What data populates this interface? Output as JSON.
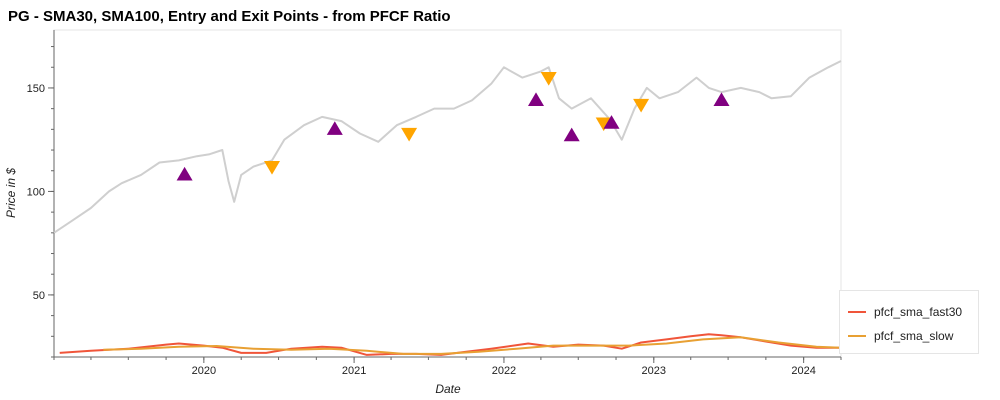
{
  "chart_data": {
    "type": "line",
    "title": "PG - SMA30, SMA100, Entry and Exit Points - from PFCF Ratio",
    "xlabel": "Date",
    "ylabel": "Price in $",
    "xlim": [
      "2019-01-01",
      "2024-04-01"
    ],
    "ylim": [
      20,
      178
    ],
    "x_ticks": [
      "2020",
      "2021",
      "2022",
      "2023",
      "2024"
    ],
    "y_ticks": [
      50,
      100,
      150
    ],
    "legend_position": "bottom-right, outside plot",
    "series": [
      {
        "name": "",
        "role": "price",
        "color": "#cfcfcf",
        "points": [
          [
            "2019-01-01",
            80
          ],
          [
            "2019-02-15",
            86
          ],
          [
            "2019-04-01",
            92
          ],
          [
            "2019-05-15",
            100
          ],
          [
            "2019-06-15",
            104
          ],
          [
            "2019-08-01",
            108
          ],
          [
            "2019-09-15",
            114
          ],
          [
            "2019-11-01",
            115
          ],
          [
            "2019-12-15",
            117
          ],
          [
            "2020-01-15",
            118
          ],
          [
            "2020-02-15",
            120
          ],
          [
            "2020-03-01",
            105
          ],
          [
            "2020-03-15",
            95
          ],
          [
            "2020-04-01",
            108
          ],
          [
            "2020-05-01",
            112
          ],
          [
            "2020-06-15",
            115
          ],
          [
            "2020-07-15",
            125
          ],
          [
            "2020-09-01",
            132
          ],
          [
            "2020-10-15",
            136
          ],
          [
            "2020-12-01",
            134
          ],
          [
            "2021-01-15",
            128
          ],
          [
            "2021-03-01",
            124
          ],
          [
            "2021-04-15",
            132
          ],
          [
            "2021-06-01",
            136
          ],
          [
            "2021-07-15",
            140
          ],
          [
            "2021-09-01",
            140
          ],
          [
            "2021-10-15",
            144
          ],
          [
            "2021-12-01",
            152
          ],
          [
            "2022-01-01",
            160
          ],
          [
            "2022-02-15",
            155
          ],
          [
            "2022-04-01",
            158
          ],
          [
            "2022-04-20",
            160
          ],
          [
            "2022-05-15",
            145
          ],
          [
            "2022-06-15",
            140
          ],
          [
            "2022-08-01",
            145
          ],
          [
            "2022-09-15",
            135
          ],
          [
            "2022-10-15",
            125
          ],
          [
            "2022-11-15",
            140
          ],
          [
            "2022-12-15",
            150
          ],
          [
            "2023-01-15",
            145
          ],
          [
            "2023-03-01",
            148
          ],
          [
            "2023-04-15",
            155
          ],
          [
            "2023-05-15",
            150
          ],
          [
            "2023-06-15",
            148
          ],
          [
            "2023-08-01",
            150
          ],
          [
            "2023-09-15",
            148
          ],
          [
            "2023-10-15",
            145
          ],
          [
            "2023-12-01",
            146
          ],
          [
            "2024-01-15",
            155
          ],
          [
            "2024-03-01",
            160
          ],
          [
            "2024-04-01",
            163
          ]
        ]
      },
      {
        "name": "pfcf_sma_fast30",
        "color": "#f0553a",
        "points": [
          [
            "2019-01-15",
            22
          ],
          [
            "2019-04-01",
            23
          ],
          [
            "2019-07-01",
            24
          ],
          [
            "2019-10-01",
            26
          ],
          [
            "2019-11-01",
            26.5
          ],
          [
            "2020-01-01",
            25.5
          ],
          [
            "2020-02-15",
            24.5
          ],
          [
            "2020-04-01",
            22
          ],
          [
            "2020-06-01",
            22
          ],
          [
            "2020-08-01",
            24
          ],
          [
            "2020-10-15",
            25
          ],
          [
            "2020-12-01",
            24.5
          ],
          [
            "2021-02-01",
            21
          ],
          [
            "2021-04-01",
            21.5
          ],
          [
            "2021-06-01",
            21.5
          ],
          [
            "2021-08-01",
            21
          ],
          [
            "2021-10-01",
            22.5
          ],
          [
            "2021-12-01",
            24
          ],
          [
            "2022-03-01",
            26.5
          ],
          [
            "2022-05-01",
            25
          ],
          [
            "2022-07-01",
            26
          ],
          [
            "2022-09-01",
            25.5
          ],
          [
            "2022-10-15",
            24
          ],
          [
            "2022-12-01",
            27
          ],
          [
            "2023-02-01",
            28.5
          ],
          [
            "2023-04-01",
            30
          ],
          [
            "2023-05-15",
            31
          ],
          [
            "2023-06-15",
            30.5
          ],
          [
            "2023-08-01",
            29.5
          ],
          [
            "2023-10-01",
            27.5
          ],
          [
            "2023-12-01",
            25.5
          ],
          [
            "2024-02-01",
            24.5
          ],
          [
            "2024-04-01",
            24.5
          ]
        ]
      },
      {
        "name": "pfcf_sma_slow",
        "color": "#e8a033",
        "points": [
          [
            "2019-05-01",
            23.5
          ],
          [
            "2019-08-01",
            24
          ],
          [
            "2019-11-01",
            25
          ],
          [
            "2020-02-01",
            25.3
          ],
          [
            "2020-05-01",
            24
          ],
          [
            "2020-08-01",
            23.5
          ],
          [
            "2020-11-01",
            24
          ],
          [
            "2021-02-01",
            23
          ],
          [
            "2021-05-01",
            21.5
          ],
          [
            "2021-08-01",
            21.5
          ],
          [
            "2021-11-01",
            22.5
          ],
          [
            "2022-02-01",
            24
          ],
          [
            "2022-05-01",
            25.5
          ],
          [
            "2022-08-01",
            25.5
          ],
          [
            "2022-11-01",
            25.5
          ],
          [
            "2023-02-01",
            26.5
          ],
          [
            "2023-05-01",
            28.5
          ],
          [
            "2023-08-01",
            29.5
          ],
          [
            "2023-11-01",
            27
          ],
          [
            "2024-02-01",
            25
          ],
          [
            "2024-04-01",
            24.5
          ]
        ]
      }
    ],
    "markers": [
      {
        "kind": "entry",
        "shape": "triangle-up",
        "color": "#800080",
        "date": "2019-11-15",
        "value": 108
      },
      {
        "kind": "exit",
        "shape": "triangle-down",
        "color": "#ffa500",
        "date": "2020-06-15",
        "value": 112
      },
      {
        "kind": "entry",
        "shape": "triangle-up",
        "color": "#800080",
        "date": "2020-11-15",
        "value": 130
      },
      {
        "kind": "exit",
        "shape": "triangle-down",
        "color": "#ffa500",
        "date": "2021-05-15",
        "value": 128
      },
      {
        "kind": "entry",
        "shape": "triangle-up",
        "color": "#800080",
        "date": "2022-03-20",
        "value": 144
      },
      {
        "kind": "exit",
        "shape": "triangle-down",
        "color": "#ffa500",
        "date": "2022-04-20",
        "value": 155
      },
      {
        "kind": "entry",
        "shape": "triangle-up",
        "color": "#800080",
        "date": "2022-06-15",
        "value": 127
      },
      {
        "kind": "exit",
        "shape": "triangle-down",
        "color": "#ffa500",
        "date": "2022-09-01",
        "value": 133
      },
      {
        "kind": "entry",
        "shape": "triangle-up",
        "color": "#800080",
        "date": "2022-09-20",
        "value": 133
      },
      {
        "kind": "exit",
        "shape": "triangle-down",
        "color": "#ffa500",
        "date": "2022-12-01",
        "value": 142
      },
      {
        "kind": "entry",
        "shape": "triangle-up",
        "color": "#800080",
        "date": "2023-06-15",
        "value": 144
      }
    ]
  }
}
